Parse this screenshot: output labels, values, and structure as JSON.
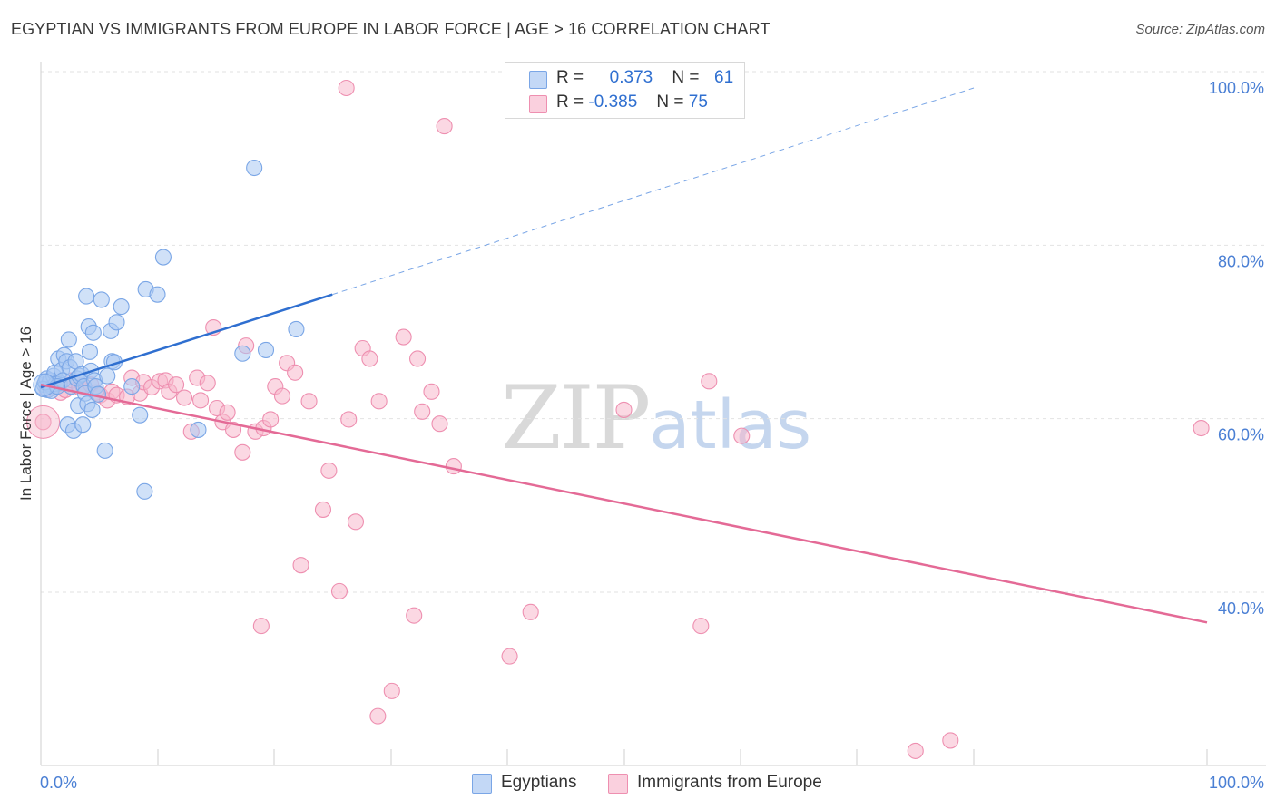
{
  "header": {
    "title": "EGYPTIAN VS IMMIGRANTS FROM EUROPE IN LABOR FORCE | AGE > 16 CORRELATION CHART",
    "source": "Source: ZipAtlas.com"
  },
  "legend": {
    "rows": [
      {
        "r_label": "R =",
        "r_value": "0.373",
        "n_label": "N =",
        "n_value": "61",
        "color": "#a9c8f2"
      },
      {
        "r_label": "R =",
        "r_value": "-0.385",
        "n_label": "N =",
        "n_value": "75",
        "color": "#f7b8cc"
      }
    ]
  },
  "bottom_legend": [
    {
      "label": "Egyptians",
      "color": "#a9c8f2"
    },
    {
      "label": "Immigrants from Europe",
      "color": "#f7b8cc"
    }
  ],
  "watermark": {
    "zip": "ZIP",
    "atlas": "atlas"
  },
  "chart_data": {
    "type": "scatter",
    "title": "EGYPTIAN VS IMMIGRANTS FROM EUROPE IN LABOR FORCE | AGE > 16 CORRELATION CHART",
    "xlabel": "",
    "ylabel": "In Labor Force | Age > 16",
    "xlim": [
      0,
      100
    ],
    "ylim": [
      20,
      102
    ],
    "x_tick_labels": [
      "0.0%",
      "100.0%"
    ],
    "y_ticks": [
      40,
      60,
      80,
      100
    ],
    "y_tick_labels": [
      "40.0%",
      "60.0%",
      "80.0%",
      "100.0%"
    ],
    "grid": true,
    "series": [
      {
        "name": "Egyptians",
        "color": "#7aa6e6",
        "fill": "#a9c8f2",
        "trend": {
          "x0": 0,
          "y0": 65.5,
          "x1": 25,
          "y1": 76.2,
          "dashed_to_x": 80,
          "dashed_to_y": 100
        },
        "points": [
          [
            0.3,
            65.8
          ],
          [
            0.5,
            66.5
          ],
          [
            0.6,
            65.2
          ],
          [
            0.7,
            65.9
          ],
          [
            0.8,
            66.3
          ],
          [
            1.0,
            65.5
          ],
          [
            1.1,
            66.8
          ],
          [
            1.2,
            67.2
          ],
          [
            1.3,
            65.9
          ],
          [
            1.5,
            68.8
          ],
          [
            1.6,
            66.0
          ],
          [
            1.8,
            67.5
          ],
          [
            1.9,
            66.3
          ],
          [
            2.0,
            69.2
          ],
          [
            2.2,
            68.5
          ],
          [
            2.3,
            61.2
          ],
          [
            2.4,
            71.0
          ],
          [
            2.5,
            67.8
          ],
          [
            2.6,
            65.6
          ],
          [
            2.8,
            60.5
          ],
          [
            3.0,
            68.5
          ],
          [
            3.1,
            66.5
          ],
          [
            3.2,
            63.4
          ],
          [
            3.3,
            66.8
          ],
          [
            3.5,
            67.0
          ],
          [
            3.6,
            61.2
          ],
          [
            3.7,
            65.6
          ],
          [
            3.8,
            64.8
          ],
          [
            3.9,
            76.0
          ],
          [
            4.0,
            63.6
          ],
          [
            4.1,
            72.5
          ],
          [
            4.2,
            69.6
          ],
          [
            4.3,
            67.4
          ],
          [
            4.4,
            62.9
          ],
          [
            4.5,
            71.8
          ],
          [
            4.6,
            66.3
          ],
          [
            4.7,
            65.6
          ],
          [
            4.9,
            64.7
          ],
          [
            5.2,
            75.6
          ],
          [
            5.5,
            58.2
          ],
          [
            5.7,
            66.8
          ],
          [
            6.0,
            72.0
          ],
          [
            6.1,
            68.5
          ],
          [
            6.3,
            68.4
          ],
          [
            6.5,
            73.0
          ],
          [
            6.9,
            74.8
          ],
          [
            7.8,
            65.6
          ],
          [
            8.5,
            62.3
          ],
          [
            8.9,
            53.5
          ],
          [
            9.0,
            76.8
          ],
          [
            10.0,
            76.2
          ],
          [
            10.5,
            80.5
          ],
          [
            13.5,
            60.6
          ],
          [
            17.3,
            69.4
          ],
          [
            18.3,
            90.8
          ],
          [
            19.3,
            69.8
          ],
          [
            21.9,
            72.2
          ],
          [
            0.2,
            65.3
          ],
          [
            0.4,
            66.1
          ],
          [
            0.9,
            65.1
          ],
          [
            1.4,
            65.6
          ]
        ]
      },
      {
        "name": "Immigrants from Europe",
        "color": "#ee8fb0",
        "fill": "#f7b8cc",
        "trend": {
          "x0": 0,
          "y0": 65.8,
          "x1": 100,
          "y1": 38.4
        },
        "points": [
          [
            0.2,
            61.5
          ],
          [
            0.5,
            65.3
          ],
          [
            1.0,
            66.0
          ],
          [
            1.3,
            65.7
          ],
          [
            1.7,
            64.9
          ],
          [
            2.1,
            65.2
          ],
          [
            2.6,
            65.6
          ],
          [
            2.7,
            66.3
          ],
          [
            3.3,
            65.5
          ],
          [
            3.6,
            65.7
          ],
          [
            4.3,
            65.8
          ],
          [
            4.7,
            64.9
          ],
          [
            5.1,
            64.6
          ],
          [
            5.7,
            64.0
          ],
          [
            6.1,
            65.0
          ],
          [
            6.5,
            64.6
          ],
          [
            7.4,
            64.4
          ],
          [
            7.8,
            66.6
          ],
          [
            8.5,
            64.8
          ],
          [
            8.8,
            66.1
          ],
          [
            9.5,
            65.5
          ],
          [
            10.2,
            66.2
          ],
          [
            10.7,
            66.3
          ],
          [
            11.0,
            65.0
          ],
          [
            11.6,
            65.8
          ],
          [
            12.3,
            64.3
          ],
          [
            12.9,
            60.4
          ],
          [
            13.4,
            66.6
          ],
          [
            13.7,
            64.0
          ],
          [
            14.3,
            66.0
          ],
          [
            14.8,
            72.4
          ],
          [
            15.1,
            63.1
          ],
          [
            15.6,
            61.5
          ],
          [
            16.0,
            62.6
          ],
          [
            16.5,
            60.6
          ],
          [
            17.3,
            58.0
          ],
          [
            17.6,
            70.3
          ],
          [
            18.4,
            60.4
          ],
          [
            18.9,
            38.0
          ],
          [
            19.1,
            60.8
          ],
          [
            19.7,
            61.8
          ],
          [
            20.1,
            65.6
          ],
          [
            20.7,
            64.5
          ],
          [
            21.1,
            68.3
          ],
          [
            21.8,
            67.2
          ],
          [
            22.3,
            45.0
          ],
          [
            23.0,
            63.9
          ],
          [
            24.2,
            51.4
          ],
          [
            24.7,
            55.9
          ],
          [
            25.6,
            42.0
          ],
          [
            26.2,
            100.0
          ],
          [
            26.4,
            61.8
          ],
          [
            27.0,
            50.0
          ],
          [
            27.6,
            70.0
          ],
          [
            28.2,
            68.8
          ],
          [
            28.9,
            27.6
          ],
          [
            29.0,
            63.9
          ],
          [
            30.1,
            30.5
          ],
          [
            31.1,
            71.3
          ],
          [
            32.0,
            39.2
          ],
          [
            32.3,
            68.8
          ],
          [
            32.7,
            62.7
          ],
          [
            33.5,
            65.0
          ],
          [
            34.2,
            61.3
          ],
          [
            34.6,
            95.6
          ],
          [
            35.4,
            56.4
          ],
          [
            40.2,
            34.5
          ],
          [
            42.0,
            39.6
          ],
          [
            50.0,
            62.9
          ],
          [
            56.6,
            38.0
          ],
          [
            57.3,
            66.2
          ],
          [
            60.1,
            59.9
          ],
          [
            75.0,
            23.6
          ],
          [
            78.0,
            24.8
          ],
          [
            99.5,
            60.8
          ]
        ]
      }
    ]
  }
}
